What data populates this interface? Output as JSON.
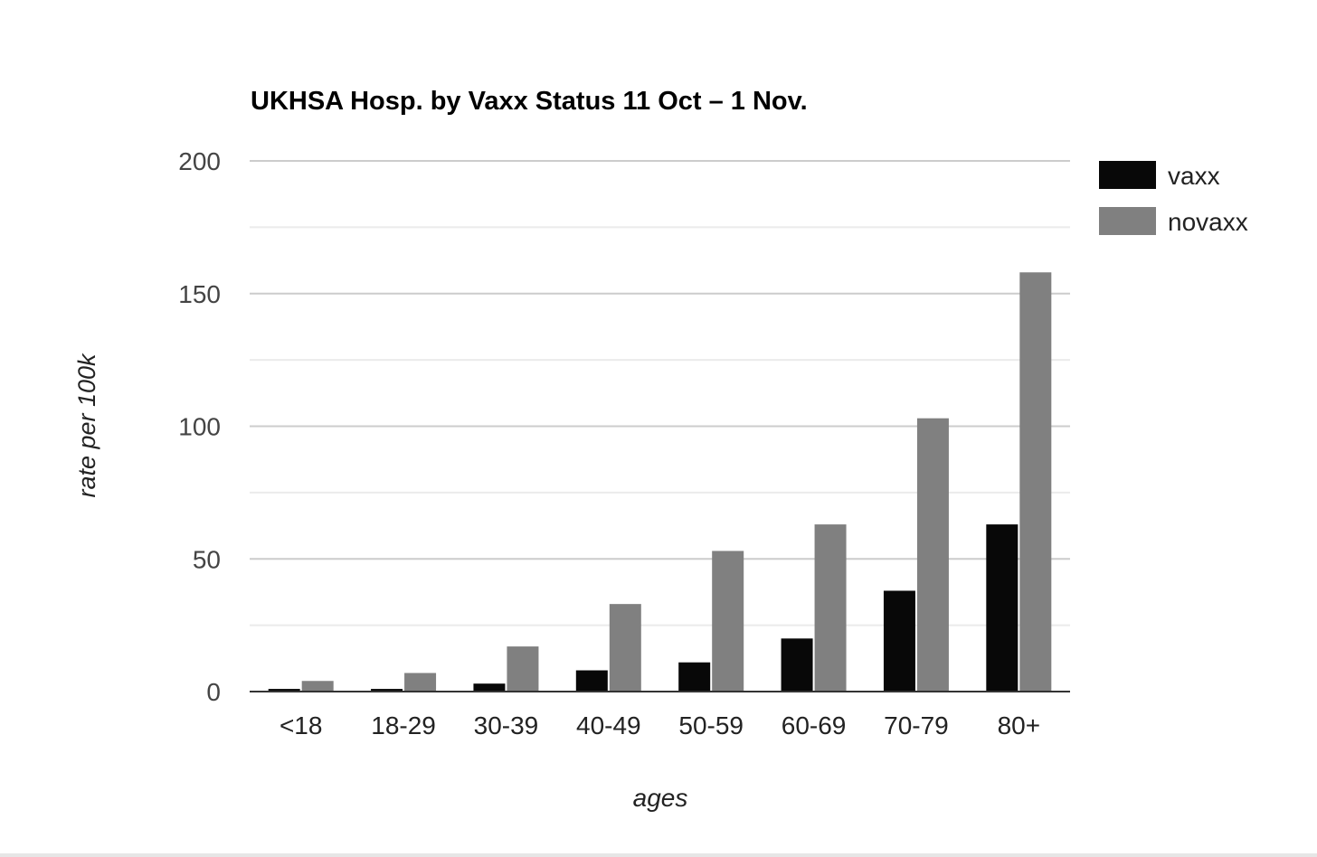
{
  "chart_data": {
    "type": "bar",
    "title": "UKHSA Hosp. by Vaxx Status 11 Oct – 1 Nov.",
    "xlabel": "ages",
    "ylabel": "rate per 100k",
    "categories": [
      "<18",
      "18-29",
      "30-39",
      "40-49",
      "50-59",
      "60-69",
      "70-79",
      "80+"
    ],
    "series": [
      {
        "name": "vaxx",
        "color": "#080808",
        "values": [
          1,
          1,
          3,
          8,
          11,
          20,
          38,
          63
        ]
      },
      {
        "name": "novaxx",
        "color": "#808080",
        "values": [
          4,
          7,
          17,
          33,
          53,
          63,
          103,
          158
        ]
      }
    ],
    "ylim": [
      0,
      200
    ],
    "yticks": [
      0,
      50,
      100,
      150,
      200
    ],
    "grid": true,
    "legend_position": "right"
  }
}
